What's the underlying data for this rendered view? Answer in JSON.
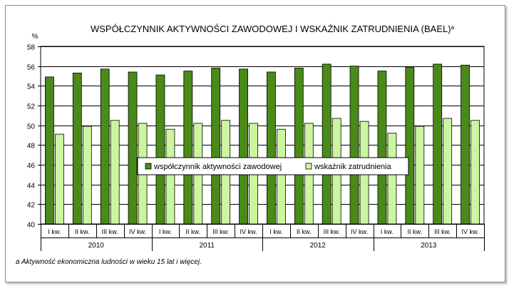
{
  "chart_data": {
    "type": "bar",
    "title": "WSPÓŁCZYNNIK AKTYWNOŚCI ZAWODOWEJ I WSKAŹNIK ZATRUDNIENIA (BAEL)",
    "title_superscript": "a",
    "ylabel": "%",
    "xlabel": "",
    "ylim": [
      40,
      58
    ],
    "yticks": [
      40,
      42,
      44,
      46,
      48,
      50,
      52,
      54,
      56,
      58
    ],
    "grid": true,
    "legend_position": "center",
    "groups": [
      "2010",
      "2011",
      "2012",
      "2013"
    ],
    "categories": [
      "I kw.",
      "II kw.",
      "III kw.",
      "IV kw.",
      "I kw.",
      "II kw.",
      "III kw.",
      "IV kw.",
      "I kw.",
      "II kw.",
      "III kw.",
      "IV kw.",
      "I kw.",
      "II kw.",
      "III kw.",
      "IV kw."
    ],
    "series": [
      {
        "name": "współczynnik aktywności zawodowej",
        "color": "#4a8a18",
        "values": [
          54.9,
          55.3,
          55.7,
          55.4,
          55.1,
          55.5,
          55.8,
          55.7,
          55.4,
          55.8,
          56.2,
          56.0,
          55.5,
          55.9,
          56.2,
          56.1
        ]
      },
      {
        "name": "wskaźnik zatrudnienia",
        "color": "#ccf5a0",
        "values": [
          49.1,
          49.9,
          50.5,
          50.2,
          49.6,
          50.2,
          50.5,
          50.2,
          49.6,
          50.2,
          50.7,
          50.4,
          49.2,
          49.9,
          50.7,
          50.5
        ]
      }
    ],
    "footnote": "a Aktywność ekonomiczna ludności w wieku 15 lat i więcej."
  },
  "colors": {
    "plot_background": "#ffffff",
    "gridline": "#000000",
    "bar_outline": "#000000"
  }
}
